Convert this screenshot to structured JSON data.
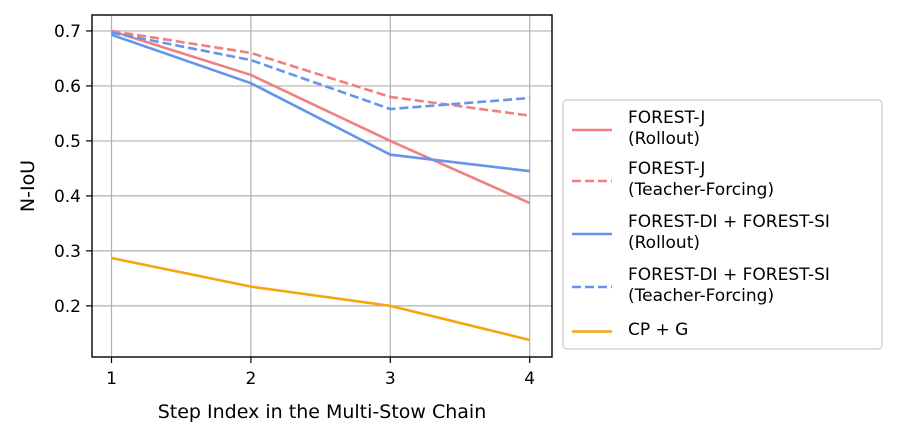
{
  "chart_data": {
    "type": "line",
    "title": "",
    "xlabel": "Step Index in the Multi-Stow Chain",
    "ylabel": "N-IoU",
    "x": [
      1,
      2,
      3,
      4
    ],
    "xticks": [
      "1",
      "2",
      "3",
      "4"
    ],
    "xlim": [
      0.86,
      4.16
    ],
    "yticks": [
      "0.2",
      "0.3",
      "0.4",
      "0.5",
      "0.6",
      "0.7"
    ],
    "ytick_values": [
      0.2,
      0.3,
      0.4,
      0.5,
      0.6,
      0.7
    ],
    "ylim": [
      0.107,
      0.729
    ],
    "grid": true,
    "legend_position": "outside-right",
    "series": [
      {
        "name": "FOREST-J\n(Rollout)",
        "values": [
          0.7,
          0.62,
          0.5,
          0.387
        ],
        "color": "#f08080",
        "dash": "solid"
      },
      {
        "name": "FOREST-J\n(Teacher-Forcing)",
        "values": [
          0.7,
          0.66,
          0.58,
          0.546
        ],
        "color": "#f08080",
        "dash": "dashed"
      },
      {
        "name": "FOREST-DI + FOREST-SI\n(Rollout)",
        "values": [
          0.693,
          0.605,
          0.475,
          0.445
        ],
        "color": "#6495ed",
        "dash": "solid"
      },
      {
        "name": "FOREST-DI + FOREST-SI\n(Teacher-Forcing)",
        "values": [
          0.697,
          0.647,
          0.558,
          0.578
        ],
        "color": "#6495ed",
        "dash": "dashed"
      },
      {
        "name": "CP + G",
        "values": [
          0.287,
          0.235,
          0.2,
          0.138
        ],
        "color": "#f5a60f",
        "dash": "solid"
      }
    ]
  }
}
